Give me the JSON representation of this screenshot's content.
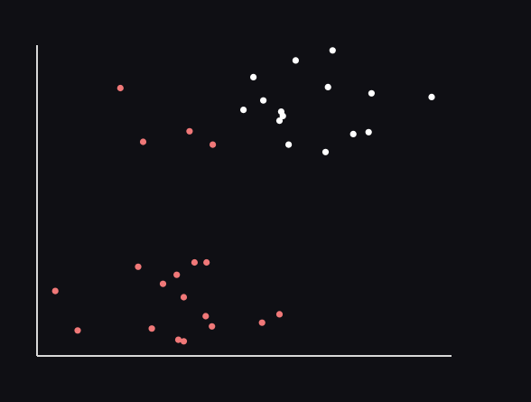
{
  "colors": {
    "background": "#0f0f14",
    "axis": "#d8d8d8",
    "series_coral": "#f07878",
    "series_white": "#ffffff"
  },
  "chart_data": {
    "type": "scatter",
    "title": "",
    "xlabel": "",
    "ylabel": "",
    "grid": false,
    "legend": "none",
    "xlim": [
      0,
      100
    ],
    "ylim": [
      0,
      100
    ],
    "series": [
      {
        "color": "#f07878",
        "points": [
          [
            20.1,
            86.2
          ],
          [
            25.6,
            68.9
          ],
          [
            36.8,
            72.3
          ],
          [
            42.4,
            68.0
          ],
          [
            4.4,
            20.9
          ],
          [
            9.8,
            8.2
          ],
          [
            24.4,
            28.7
          ],
          [
            30.4,
            23.2
          ],
          [
            33.7,
            26.1
          ],
          [
            38.0,
            30.1
          ],
          [
            40.9,
            30.1
          ],
          [
            35.4,
            18.9
          ],
          [
            40.7,
            12.8
          ],
          [
            42.2,
            9.5
          ],
          [
            27.7,
            8.8
          ],
          [
            34.1,
            5.2
          ],
          [
            35.4,
            4.7
          ],
          [
            54.3,
            10.7
          ],
          [
            58.5,
            13.4
          ]
        ]
      },
      {
        "color": "#ffffff",
        "points": [
          [
            71.3,
            98.3
          ],
          [
            62.4,
            95.1
          ],
          [
            52.2,
            89.7
          ],
          [
            70.2,
            86.5
          ],
          [
            80.7,
            84.5
          ],
          [
            95.2,
            83.3
          ],
          [
            54.6,
            82.2
          ],
          [
            49.8,
            79.2
          ],
          [
            58.9,
            78.6
          ],
          [
            59.3,
            77.2
          ],
          [
            58.5,
            75.7
          ],
          [
            80.0,
            72.0
          ],
          [
            76.3,
            71.4
          ],
          [
            60.7,
            68.0
          ],
          [
            69.6,
            65.6
          ]
        ]
      }
    ]
  }
}
